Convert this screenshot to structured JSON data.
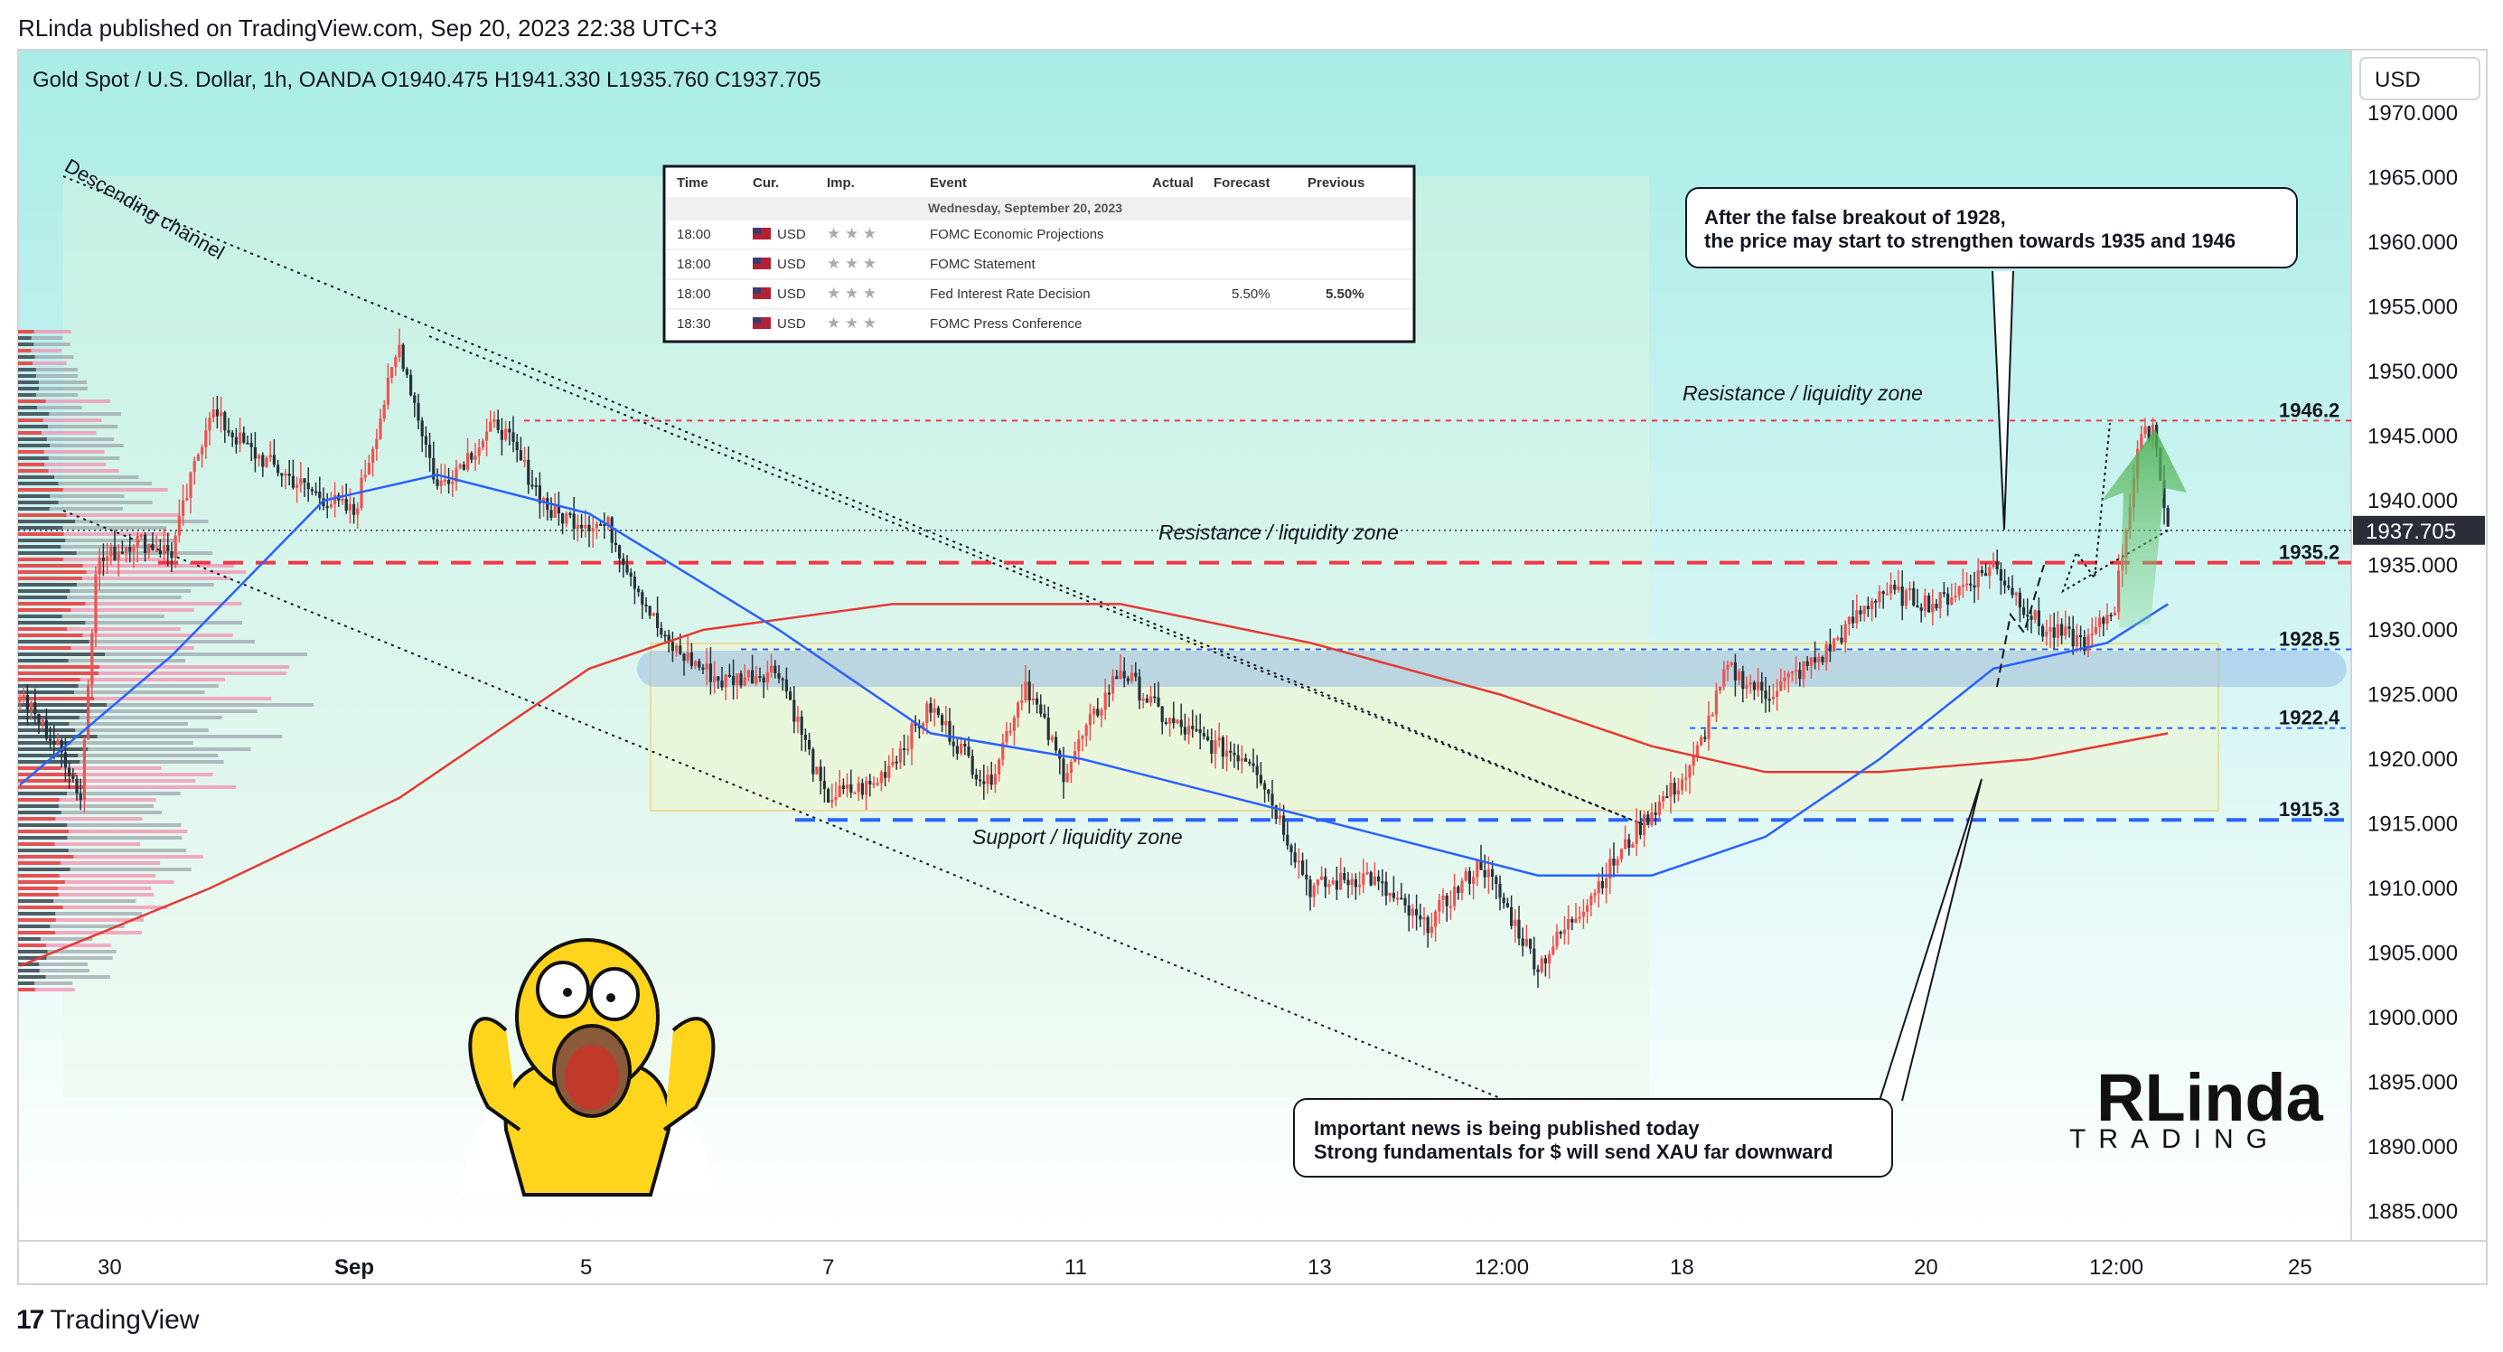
{
  "publisher_line": "RLinda published on TradingView.com, Sep 20, 2023 22:38 UTC+3",
  "footer": {
    "brand": "TradingView"
  },
  "symbol_line": "Gold Spot / U.S. Dollar, 1h, OANDA  O1940.475  H1941.330  L1935.760  C1937.705",
  "currency_button": "USD",
  "price_axis": {
    "ticks": [
      "1970.000",
      "1965.000",
      "1960.000",
      "1955.000",
      "1950.000",
      "1945.000",
      "1940.000",
      "1935.000",
      "1930.000",
      "1925.000",
      "1920.000",
      "1915.000",
      "1910.000",
      "1905.000",
      "1900.000",
      "1895.000",
      "1890.000",
      "1885.000"
    ],
    "current_price": "1937.705"
  },
  "time_axis": {
    "ticks": [
      "30",
      "Sep",
      "5",
      "7",
      "11",
      "13",
      "12:00",
      "18",
      "20",
      "12:00",
      "25"
    ]
  },
  "levels": [
    {
      "value": "1946.2",
      "color": "#f23645"
    },
    {
      "value": "1935.2",
      "color": "#f23645"
    },
    {
      "value": "1928.5",
      "color": "#2962ff"
    },
    {
      "value": "1922.4",
      "color": "#2962ff"
    },
    {
      "value": "1915.3",
      "color": "#2962ff"
    }
  ],
  "zone_labels": {
    "resistance_upper": "Resistance / liquidity zone",
    "resistance_lower": "Resistance / liquidity zone",
    "support": "Support / liquidity zone",
    "channel": "Descending channel"
  },
  "callouts": {
    "top_line1": "After the false breakout of 1928,",
    "top_line2": "the price may start to strengthen towards 1935 and 1946",
    "bottom_line1": "Important news is being published today",
    "bottom_line2": "Strong fundamentals for $ will send XAU far downward"
  },
  "calendar": {
    "headers": [
      "Time",
      "Cur.",
      "Imp.",
      "Event",
      "Actual",
      "Forecast",
      "Previous"
    ],
    "date_row": "Wednesday, September 20, 2023",
    "rows": [
      {
        "time": "18:00",
        "cur": "USD",
        "event": "FOMC Economic Projections",
        "actual": "",
        "forecast": "",
        "previous": ""
      },
      {
        "time": "18:00",
        "cur": "USD",
        "event": "FOMC Statement",
        "actual": "",
        "forecast": "",
        "previous": ""
      },
      {
        "time": "18:00",
        "cur": "USD",
        "event": "Fed Interest Rate Decision",
        "actual": "",
        "forecast": "5.50%",
        "previous": "5.50%"
      },
      {
        "time": "18:30",
        "cur": "USD",
        "event": "FOMC Press Conference",
        "actual": "",
        "forecast": "",
        "previous": ""
      }
    ]
  },
  "watermark": {
    "line1": "RLinda",
    "line2": "TRADING"
  },
  "colors": {
    "bull": "#ef5350",
    "bear": "#26323a",
    "ma_fast": "#2962ff",
    "ma_slow": "#e53935",
    "background_top": "#a9ece6",
    "background_bottom": "#ffffff"
  },
  "chart_data": {
    "type": "candlestick",
    "title": "Gold Spot / U.S. Dollar, 1h, OANDA",
    "ylim": [
      1882,
      1973
    ],
    "x_ticks": [
      "30",
      "Sep",
      "5",
      "7",
      "11",
      "13",
      "12:00",
      "18",
      "20",
      "12:00",
      "25"
    ],
    "close_path": [
      {
        "i": 0,
        "v": 1925
      },
      {
        "i": 12,
        "v": 1920
      },
      {
        "i": 16,
        "v": 1917
      },
      {
        "i": 20,
        "v": 1935
      },
      {
        "i": 30,
        "v": 1937
      },
      {
        "i": 40,
        "v": 1936
      },
      {
        "i": 50,
        "v": 1947
      },
      {
        "i": 60,
        "v": 1944
      },
      {
        "i": 75,
        "v": 1941
      },
      {
        "i": 88,
        "v": 1939
      },
      {
        "i": 100,
        "v": 1952
      },
      {
        "i": 110,
        "v": 1941
      },
      {
        "i": 126,
        "v": 1946
      },
      {
        "i": 140,
        "v": 1939
      },
      {
        "i": 155,
        "v": 1938
      },
      {
        "i": 170,
        "v": 1929
      },
      {
        "i": 185,
        "v": 1926
      },
      {
        "i": 200,
        "v": 1927
      },
      {
        "i": 212,
        "v": 1917
      },
      {
        "i": 225,
        "v": 1918
      },
      {
        "i": 240,
        "v": 1924
      },
      {
        "i": 255,
        "v": 1918
      },
      {
        "i": 265,
        "v": 1926
      },
      {
        "i": 275,
        "v": 1919
      },
      {
        "i": 290,
        "v": 1927
      },
      {
        "i": 302,
        "v": 1923
      },
      {
        "i": 315,
        "v": 1921
      },
      {
        "i": 325,
        "v": 1920
      },
      {
        "i": 340,
        "v": 1910
      },
      {
        "i": 355,
        "v": 1911
      },
      {
        "i": 370,
        "v": 1907
      },
      {
        "i": 385,
        "v": 1912
      },
      {
        "i": 400,
        "v": 1904
      },
      {
        "i": 415,
        "v": 1910
      },
      {
        "i": 430,
        "v": 1916
      },
      {
        "i": 440,
        "v": 1919
      },
      {
        "i": 450,
        "v": 1927
      },
      {
        "i": 460,
        "v": 1925
      },
      {
        "i": 475,
        "v": 1928
      },
      {
        "i": 490,
        "v": 1933
      },
      {
        "i": 505,
        "v": 1932
      },
      {
        "i": 520,
        "v": 1935
      },
      {
        "i": 533,
        "v": 1930
      },
      {
        "i": 545,
        "v": 1929
      },
      {
        "i": 552,
        "v": 1932
      },
      {
        "i": 558,
        "v": 1944
      },
      {
        "i": 562,
        "v": 1946
      },
      {
        "i": 566,
        "v": 1938
      }
    ],
    "ma_fast": [
      {
        "i": 0,
        "v": 1918
      },
      {
        "i": 40,
        "v": 1928
      },
      {
        "i": 80,
        "v": 1940
      },
      {
        "i": 110,
        "v": 1942
      },
      {
        "i": 150,
        "v": 1939
      },
      {
        "i": 200,
        "v": 1930
      },
      {
        "i": 240,
        "v": 1922
      },
      {
        "i": 280,
        "v": 1920
      },
      {
        "i": 320,
        "v": 1917
      },
      {
        "i": 360,
        "v": 1914
      },
      {
        "i": 400,
        "v": 1911
      },
      {
        "i": 430,
        "v": 1911
      },
      {
        "i": 460,
        "v": 1914
      },
      {
        "i": 490,
        "v": 1920
      },
      {
        "i": 520,
        "v": 1927
      },
      {
        "i": 550,
        "v": 1929
      },
      {
        "i": 566,
        "v": 1932
      }
    ],
    "ma_slow": [
      {
        "i": 0,
        "v": 1904
      },
      {
        "i": 50,
        "v": 1910
      },
      {
        "i": 100,
        "v": 1917
      },
      {
        "i": 150,
        "v": 1927
      },
      {
        "i": 180,
        "v": 1930
      },
      {
        "i": 230,
        "v": 1932
      },
      {
        "i": 290,
        "v": 1932
      },
      {
        "i": 340,
        "v": 1929
      },
      {
        "i": 390,
        "v": 1925
      },
      {
        "i": 430,
        "v": 1921
      },
      {
        "i": 460,
        "v": 1919
      },
      {
        "i": 490,
        "v": 1919
      },
      {
        "i": 530,
        "v": 1920
      },
      {
        "i": 566,
        "v": 1922
      }
    ],
    "forecast_path": [
      1937.7,
      1933,
      1936,
      1934,
      1946
    ],
    "levels": [
      1946.2,
      1935.2,
      1928.5,
      1922.4,
      1915.3
    ]
  }
}
